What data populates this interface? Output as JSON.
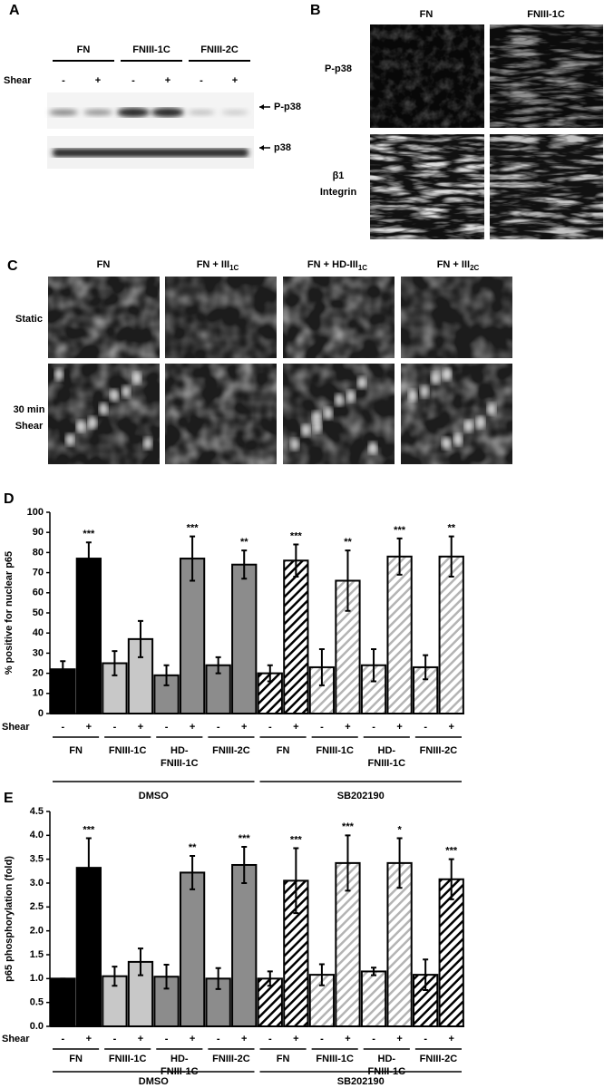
{
  "panel_a": {
    "letter": "A",
    "groups": [
      "FN",
      "FNIII-1C",
      "FNIII-2C"
    ],
    "shear_label": "Shear",
    "shear_signs": [
      "-",
      "+",
      "-",
      "+",
      "-",
      "+"
    ],
    "bands": [
      "P-p38",
      "p38"
    ]
  },
  "panel_b": {
    "letter": "B",
    "columns": [
      "FN",
      "FNIII-1C"
    ],
    "rows": [
      [
        "P-p38"
      ],
      [
        "β1",
        "Integrin"
      ]
    ]
  },
  "panel_c": {
    "letter": "C",
    "columns": [
      {
        "text": "FN"
      },
      {
        "text": "FN + III",
        "sub": "1C"
      },
      {
        "text": "FN + HD-III",
        "sub": "1C"
      },
      {
        "text": "FN + III",
        "sub": "2C"
      }
    ],
    "rows": [
      [
        "Static"
      ],
      [
        "30 min",
        "Shear"
      ]
    ]
  },
  "chart_data": [
    {
      "type": "bar",
      "panel_label": "D",
      "y_label": "% positive for nuclear p65",
      "shear_label": "Shear",
      "categories": [
        "-",
        "+",
        "-",
        "+",
        "-",
        "+",
        "-",
        "+",
        "-",
        "+",
        "-",
        "+",
        "-",
        "+",
        "-",
        "+"
      ],
      "values": [
        22,
        77,
        25,
        37,
        19,
        77,
        24,
        74,
        20,
        76,
        23,
        66,
        24,
        78,
        23,
        78
      ],
      "errors": [
        4,
        8,
        6,
        9,
        5,
        11,
        4,
        7,
        4,
        8,
        9,
        15,
        8,
        9,
        6,
        10
      ],
      "annotations": [
        null,
        "***",
        null,
        null,
        null,
        "***",
        null,
        "**",
        null,
        "***",
        null,
        "**",
        null,
        "***",
        null,
        "**"
      ],
      "colors": [
        "#000000",
        "#000000",
        "#c8c8c8",
        "#c8c8c8",
        "#8c8c8c",
        "#8c8c8c",
        "#8c8c8c",
        "#8c8c8c",
        "#000000",
        "#000000",
        "#b4b4b4",
        "#b4b4b4",
        "#b4b4b4",
        "#b4b4b4",
        "#b4b4b4",
        "#b4b4b4"
      ],
      "hatch": [
        false,
        false,
        false,
        false,
        false,
        false,
        false,
        false,
        true,
        true,
        true,
        true,
        true,
        true,
        true,
        true
      ],
      "groups": [
        [
          "FN"
        ],
        [
          "FNIII-1C"
        ],
        [
          "HD-",
          "FNIII-1C"
        ],
        [
          "FNIII-2C"
        ],
        [
          "FN"
        ],
        [
          "FNIII-1C"
        ],
        [
          "HD-",
          "FNIII-1C"
        ],
        [
          "FNIII-2C"
        ]
      ],
      "supergroups": [
        "DMSO",
        "SB202190"
      ],
      "ylim": [
        0,
        100
      ],
      "yticks": [
        0,
        10,
        20,
        30,
        40,
        50,
        60,
        70,
        80,
        90,
        100
      ]
    },
    {
      "type": "bar",
      "panel_label": "E",
      "y_label": "p65 phosphorylation (fold)",
      "shear_label": "Shear",
      "categories": [
        "-",
        "+",
        "-",
        "+",
        "-",
        "+",
        "-",
        "+",
        "-",
        "+",
        "-",
        "+",
        "-",
        "+",
        "-",
        "+"
      ],
      "values": [
        1.0,
        3.32,
        1.05,
        1.35,
        1.04,
        3.22,
        1.0,
        3.38,
        1.0,
        3.05,
        1.08,
        3.42,
        1.15,
        3.42,
        1.08,
        3.08
      ],
      "errors": [
        0,
        0.62,
        0.2,
        0.28,
        0.25,
        0.35,
        0.22,
        0.38,
        0.15,
        0.68,
        0.22,
        0.58,
        0.08,
        0.52,
        0.32,
        0.42
      ],
      "annotations": [
        null,
        "***",
        null,
        null,
        null,
        "**",
        null,
        "***",
        null,
        "***",
        null,
        "***",
        null,
        "*",
        null,
        "***"
      ],
      "colors": [
        "#000000",
        "#000000",
        "#c8c8c8",
        "#c8c8c8",
        "#8c8c8c",
        "#8c8c8c",
        "#8c8c8c",
        "#8c8c8c",
        "#000000",
        "#000000",
        "#b4b4b4",
        "#b4b4b4",
        "#b4b4b4",
        "#b4b4b4",
        "#000000",
        "#000000"
      ],
      "hatch": [
        false,
        false,
        false,
        false,
        false,
        false,
        false,
        false,
        true,
        true,
        true,
        true,
        true,
        true,
        true,
        true
      ],
      "groups": [
        [
          "FN"
        ],
        [
          "FNIII-1C"
        ],
        [
          "HD-",
          "FNIII-1C"
        ],
        [
          "FNIII-2C"
        ],
        [
          "FN"
        ],
        [
          "FNIII-1C"
        ],
        [
          "HD-",
          "FNIII-1C"
        ],
        [
          "FNIII-2C"
        ]
      ],
      "supergroups": [
        "DMSO",
        "SB202190"
      ],
      "ylim": [
        0,
        4.5
      ],
      "yticks": [
        {
          "value": 0,
          "label": "0.0"
        },
        0.5,
        {
          "value": 1,
          "label": "1.0"
        },
        1.5,
        {
          "value": 2,
          "label": "2.0"
        },
        2.5,
        {
          "value": 3,
          "label": "3.0"
        },
        3.5,
        {
          "value": 4,
          "label": "4.0"
        },
        4.5
      ]
    }
  ]
}
